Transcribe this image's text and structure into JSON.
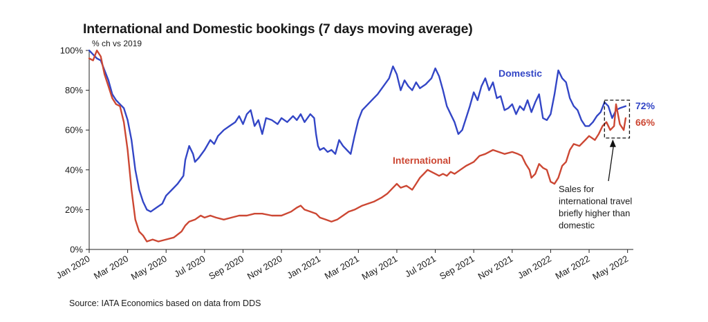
{
  "chart_data": {
    "type": "line",
    "title": "International and Domestic bookings (7 days moving average)",
    "subtitle": "% ch vs 2019",
    "source": "Source: IATA Economics based on data from DDS",
    "ylim": [
      0,
      100
    ],
    "y_ticks": [
      0,
      20,
      40,
      60,
      80,
      100
    ],
    "y_tick_labels": [
      "0%",
      "20%",
      "40%",
      "60%",
      "80%",
      "100%"
    ],
    "x_ticks": [
      0,
      2,
      4,
      6,
      8,
      10,
      12,
      14,
      16,
      18,
      20,
      22,
      24,
      26,
      28
    ],
    "x_tick_labels": [
      "Jan 2020",
      "Mar 2020",
      "May 2020",
      "Jul 2020",
      "Sep 2020",
      "Nov 2020",
      "Jan 2021",
      "Mar 2021",
      "May 2021",
      "Jul 2021",
      "Sep 2021",
      "Nov 2021",
      "Jan 2022",
      "Mar 2022",
      "May 2022"
    ],
    "xlim": [
      0,
      28.3
    ],
    "grid": false,
    "series": [
      {
        "name": "Domestic",
        "color": "#3346c6",
        "end_label": "72%",
        "points": [
          [
            0,
            100
          ],
          [
            0.2,
            98
          ],
          [
            0.4,
            96
          ],
          [
            0.6,
            95
          ],
          [
            0.8,
            90
          ],
          [
            1.0,
            85
          ],
          [
            1.2,
            78
          ],
          [
            1.4,
            75
          ],
          [
            1.6,
            73
          ],
          [
            1.8,
            71
          ],
          [
            2.0,
            65
          ],
          [
            2.2,
            55
          ],
          [
            2.4,
            40
          ],
          [
            2.6,
            30
          ],
          [
            2.8,
            24
          ],
          [
            3.0,
            20
          ],
          [
            3.2,
            19
          ],
          [
            3.5,
            21
          ],
          [
            3.8,
            23
          ],
          [
            4.0,
            27
          ],
          [
            4.3,
            30
          ],
          [
            4.6,
            33
          ],
          [
            4.9,
            37
          ],
          [
            5.0,
            45
          ],
          [
            5.2,
            52
          ],
          [
            5.4,
            48
          ],
          [
            5.5,
            44
          ],
          [
            5.7,
            46
          ],
          [
            6.0,
            50
          ],
          [
            6.3,
            55
          ],
          [
            6.5,
            53
          ],
          [
            6.7,
            57
          ],
          [
            7.0,
            60
          ],
          [
            7.3,
            62
          ],
          [
            7.6,
            64
          ],
          [
            7.8,
            67
          ],
          [
            8.0,
            63
          ],
          [
            8.2,
            68
          ],
          [
            8.4,
            70
          ],
          [
            8.6,
            62
          ],
          [
            8.8,
            65
          ],
          [
            9.0,
            58
          ],
          [
            9.2,
            66
          ],
          [
            9.5,
            65
          ],
          [
            9.8,
            63
          ],
          [
            10.0,
            66
          ],
          [
            10.3,
            64
          ],
          [
            10.6,
            67
          ],
          [
            10.8,
            65
          ],
          [
            11.0,
            68
          ],
          [
            11.2,
            64
          ],
          [
            11.5,
            68
          ],
          [
            11.7,
            66
          ],
          [
            11.8,
            58
          ],
          [
            11.9,
            52
          ],
          [
            12.0,
            50
          ],
          [
            12.2,
            51
          ],
          [
            12.4,
            49
          ],
          [
            12.6,
            50
          ],
          [
            12.8,
            48
          ],
          [
            13.0,
            55
          ],
          [
            13.2,
            52
          ],
          [
            13.4,
            50
          ],
          [
            13.6,
            48
          ],
          [
            13.8,
            57
          ],
          [
            14.0,
            65
          ],
          [
            14.2,
            70
          ],
          [
            14.5,
            73
          ],
          [
            14.8,
            76
          ],
          [
            15.0,
            78
          ],
          [
            15.3,
            82
          ],
          [
            15.6,
            86
          ],
          [
            15.8,
            92
          ],
          [
            16.0,
            88
          ],
          [
            16.2,
            80
          ],
          [
            16.4,
            85
          ],
          [
            16.6,
            82
          ],
          [
            16.8,
            80
          ],
          [
            17.0,
            84
          ],
          [
            17.2,
            81
          ],
          [
            17.5,
            83
          ],
          [
            17.8,
            86
          ],
          [
            18.0,
            91
          ],
          [
            18.2,
            87
          ],
          [
            18.4,
            80
          ],
          [
            18.6,
            72
          ],
          [
            18.8,
            68
          ],
          [
            19.0,
            64
          ],
          [
            19.2,
            58
          ],
          [
            19.4,
            60
          ],
          [
            19.6,
            66
          ],
          [
            19.8,
            72
          ],
          [
            20.0,
            79
          ],
          [
            20.2,
            75
          ],
          [
            20.4,
            82
          ],
          [
            20.6,
            86
          ],
          [
            20.8,
            80
          ],
          [
            21.0,
            84
          ],
          [
            21.2,
            76
          ],
          [
            21.4,
            77
          ],
          [
            21.6,
            70
          ],
          [
            21.8,
            71
          ],
          [
            22.0,
            73
          ],
          [
            22.2,
            68
          ],
          [
            22.4,
            72
          ],
          [
            22.6,
            70
          ],
          [
            22.8,
            75
          ],
          [
            23.0,
            69
          ],
          [
            23.2,
            74
          ],
          [
            23.4,
            78
          ],
          [
            23.6,
            66
          ],
          [
            23.8,
            65
          ],
          [
            24.0,
            68
          ],
          [
            24.2,
            78
          ],
          [
            24.4,
            90
          ],
          [
            24.6,
            86
          ],
          [
            24.8,
            84
          ],
          [
            25.0,
            76
          ],
          [
            25.2,
            72
          ],
          [
            25.4,
            70
          ],
          [
            25.6,
            65
          ],
          [
            25.8,
            62
          ],
          [
            26.0,
            62
          ],
          [
            26.2,
            64
          ],
          [
            26.4,
            67
          ],
          [
            26.6,
            69
          ],
          [
            26.8,
            74
          ],
          [
            27.0,
            72
          ],
          [
            27.2,
            66
          ],
          [
            27.4,
            70
          ],
          [
            27.6,
            71
          ],
          [
            27.9,
            72
          ]
        ]
      },
      {
        "name": "International",
        "color": "#cc4733",
        "end_label": "66%",
        "points": [
          [
            0,
            96
          ],
          [
            0.2,
            95
          ],
          [
            0.4,
            100
          ],
          [
            0.6,
            97
          ],
          [
            0.8,
            88
          ],
          [
            1.0,
            82
          ],
          [
            1.2,
            76
          ],
          [
            1.4,
            73
          ],
          [
            1.6,
            72
          ],
          [
            1.8,
            64
          ],
          [
            2.0,
            50
          ],
          [
            2.2,
            30
          ],
          [
            2.4,
            15
          ],
          [
            2.6,
            9
          ],
          [
            2.8,
            7
          ],
          [
            3.0,
            4
          ],
          [
            3.3,
            5
          ],
          [
            3.6,
            4
          ],
          [
            4.0,
            5
          ],
          [
            4.4,
            6
          ],
          [
            4.8,
            9
          ],
          [
            5.0,
            12
          ],
          [
            5.2,
            14
          ],
          [
            5.5,
            15
          ],
          [
            5.8,
            17
          ],
          [
            6.0,
            16
          ],
          [
            6.3,
            17
          ],
          [
            6.6,
            16
          ],
          [
            7.0,
            15
          ],
          [
            7.4,
            16
          ],
          [
            7.8,
            17
          ],
          [
            8.2,
            17
          ],
          [
            8.6,
            18
          ],
          [
            9.0,
            18
          ],
          [
            9.5,
            17
          ],
          [
            10.0,
            17
          ],
          [
            10.5,
            19
          ],
          [
            10.8,
            21
          ],
          [
            11.0,
            22
          ],
          [
            11.2,
            20
          ],
          [
            11.5,
            19
          ],
          [
            11.8,
            18
          ],
          [
            12.0,
            16
          ],
          [
            12.3,
            15
          ],
          [
            12.6,
            14
          ],
          [
            12.9,
            15
          ],
          [
            13.2,
            17
          ],
          [
            13.5,
            19
          ],
          [
            13.8,
            20
          ],
          [
            14.2,
            22
          ],
          [
            14.5,
            23
          ],
          [
            14.8,
            24
          ],
          [
            15.2,
            26
          ],
          [
            15.5,
            28
          ],
          [
            15.8,
            31
          ],
          [
            16.0,
            33
          ],
          [
            16.2,
            31
          ],
          [
            16.5,
            32
          ],
          [
            16.8,
            30
          ],
          [
            17.0,
            33
          ],
          [
            17.2,
            36
          ],
          [
            17.4,
            38
          ],
          [
            17.6,
            40
          ],
          [
            17.8,
            39
          ],
          [
            18.0,
            38
          ],
          [
            18.2,
            37
          ],
          [
            18.4,
            38
          ],
          [
            18.6,
            37
          ],
          [
            18.8,
            39
          ],
          [
            19.0,
            38
          ],
          [
            19.3,
            40
          ],
          [
            19.6,
            42
          ],
          [
            19.8,
            43
          ],
          [
            20.0,
            44
          ],
          [
            20.3,
            47
          ],
          [
            20.6,
            48
          ],
          [
            21.0,
            50
          ],
          [
            21.3,
            49
          ],
          [
            21.6,
            48
          ],
          [
            22.0,
            49
          ],
          [
            22.3,
            48
          ],
          [
            22.5,
            47
          ],
          [
            22.7,
            43
          ],
          [
            22.9,
            40
          ],
          [
            23.0,
            36
          ],
          [
            23.2,
            38
          ],
          [
            23.4,
            43
          ],
          [
            23.6,
            41
          ],
          [
            23.8,
            40
          ],
          [
            24.0,
            34
          ],
          [
            24.2,
            33
          ],
          [
            24.4,
            36
          ],
          [
            24.6,
            42
          ],
          [
            24.8,
            44
          ],
          [
            25.0,
            50
          ],
          [
            25.2,
            53
          ],
          [
            25.5,
            52
          ],
          [
            25.8,
            55
          ],
          [
            26.0,
            57
          ],
          [
            26.3,
            55
          ],
          [
            26.5,
            58
          ],
          [
            26.7,
            62
          ],
          [
            26.9,
            64
          ],
          [
            27.1,
            60
          ],
          [
            27.3,
            62
          ],
          [
            27.4,
            73
          ],
          [
            27.6,
            63
          ],
          [
            27.8,
            60
          ],
          [
            27.9,
            66
          ]
        ]
      }
    ],
    "annotations": {
      "domestic_label": "Domestic",
      "international_label": "International",
      "note": [
        "Sales for",
        "international travel",
        "briefly higher than",
        "domestic"
      ],
      "highlight_box": {
        "x0": 26.8,
        "x1": 28.1,
        "y0": 56,
        "y1": 75
      }
    }
  }
}
